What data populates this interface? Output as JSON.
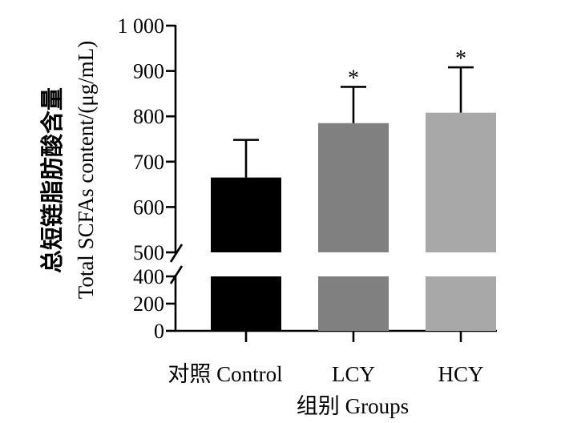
{
  "chart_data": {
    "type": "bar",
    "categories": [
      "对照 Control",
      "LCY",
      "HCY"
    ],
    "values": [
      665,
      785,
      808
    ],
    "errors": [
      83,
      80,
      100
    ],
    "significance": [
      "",
      "*",
      "*"
    ],
    "bar_colors": [
      "#000000",
      "#808080",
      "#a8a8a8"
    ],
    "ylabel_cn": "总短链脂肪酸含量",
    "ylabel_en": "Total SCFAs content/(μg/mL)",
    "xlabel": "组别 Groups",
    "axis_break": [
      400,
      500
    ],
    "ylim": [
      0,
      1000
    ],
    "yticks_lower": [
      "0",
      "200",
      "400"
    ],
    "yticks_upper": [
      "500",
      "600",
      "700",
      "800",
      "900",
      "1 000"
    ]
  }
}
